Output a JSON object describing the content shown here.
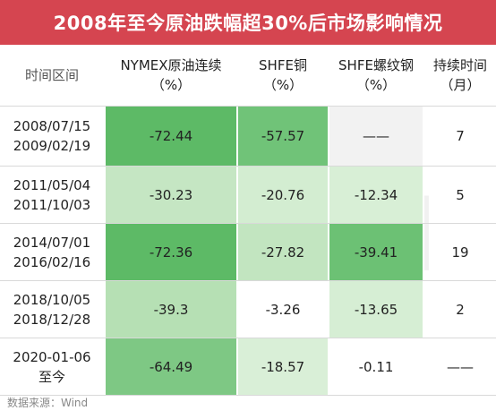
{
  "title": "2008年至今原油跌幅超30%后市场影响情况",
  "headers": [
    {
      "line1": "时间区间",
      "line2": ""
    },
    {
      "line1": "NYMEX原油连续",
      "line2": "（%）"
    },
    {
      "line1": "SHFE铜",
      "line2": "（%）"
    },
    {
      "line1": "SHFE螺纹钢",
      "line2": "（%）"
    },
    {
      "line1": "持续时间",
      "line2": "（月）"
    }
  ],
  "rows": [
    {
      "start": "2008/07/15",
      "end": "2009/02/19",
      "nymex": "-72.44",
      "copper": "-57.57",
      "rebar": "——",
      "months": "7"
    },
    {
      "start": "2011/05/04",
      "end": "2011/10/03",
      "nymex": "-30.23",
      "copper": "-20.76",
      "rebar": "-12.34",
      "months": "5"
    },
    {
      "start": "2014/07/01",
      "end": "2016/02/16",
      "nymex": "-72.36",
      "copper": "-27.82",
      "rebar": "-39.41",
      "months": "19"
    },
    {
      "start": "2018/10/05",
      "end": "2018/12/28",
      "nymex": "-39.3",
      "copper": "-3.26",
      "rebar": "-13.65",
      "months": "2"
    },
    {
      "start": "2020-01-06",
      "end": "至今",
      "nymex": "-64.49",
      "copper": "-18.57",
      "rebar": "-0.11",
      "months": "——"
    }
  ],
  "watermark": "Wind",
  "source": "数据来源：Wind",
  "colors": {
    "title_bg": "#d54550",
    "heat_strong": "#66bb6a",
    "heat_medium": "#a8d8a8",
    "heat_light": "#cdeacb",
    "heat_faint": "#e6f4e3",
    "neutral": "#f2f2f2"
  }
}
